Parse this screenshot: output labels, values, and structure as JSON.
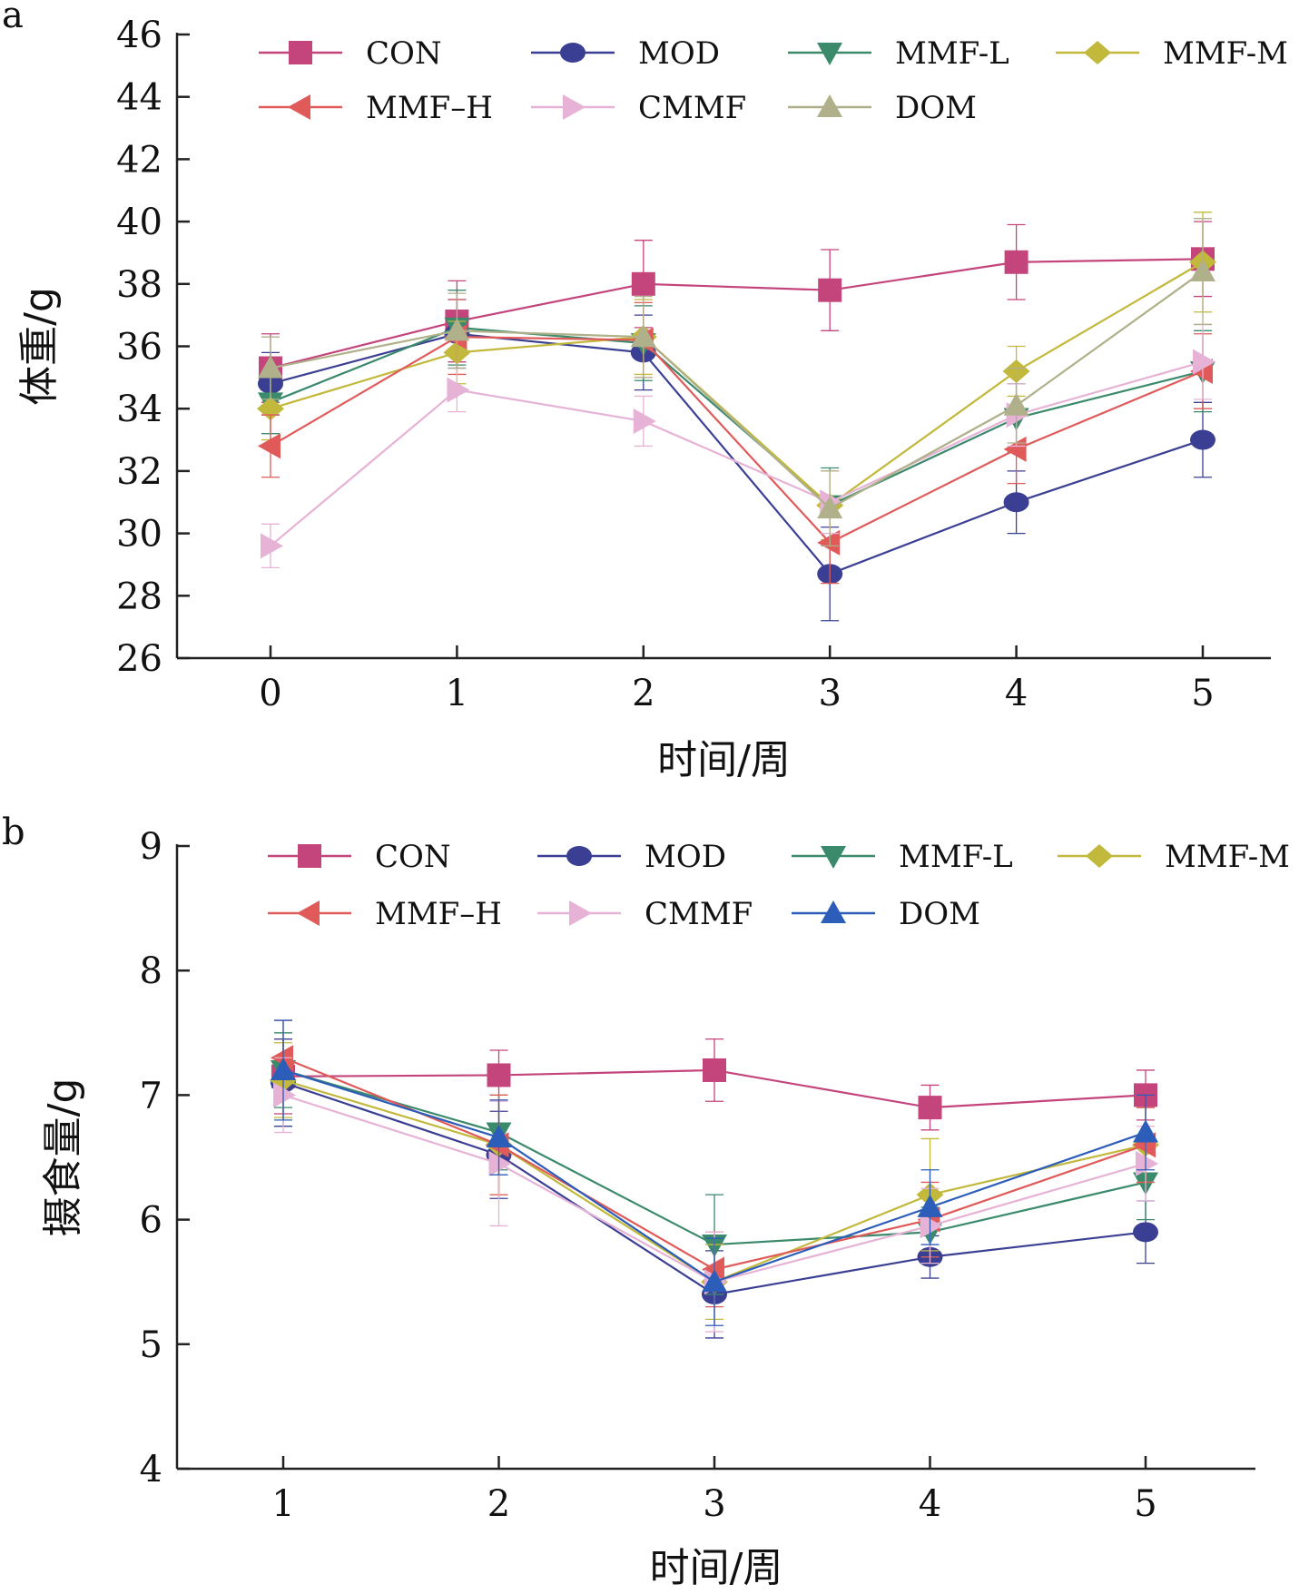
{
  "chart_data": [
    {
      "panel_label": "a",
      "type": "line",
      "xlabel": "时间/周",
      "ylabel": "体重/g",
      "x": [
        0,
        1,
        2,
        3,
        4,
        5
      ],
      "ylim": [
        26,
        46
      ],
      "yticks": [
        "26",
        "28",
        "30",
        "32",
        "34",
        "36",
        "38",
        "40",
        "42",
        "44",
        "46"
      ],
      "xticks": [
        "0",
        "1",
        "2",
        "3",
        "4",
        "5"
      ],
      "series": [
        {
          "name": "CON",
          "color": "#c4447c",
          "marker": "square",
          "values": [
            35.3,
            36.8,
            38.0,
            37.8,
            38.7,
            38.8
          ],
          "err": [
            1.1,
            1.3,
            1.4,
            1.3,
            1.2,
            1.2
          ]
        },
        {
          "name": "MOD",
          "color": "#3b3f93",
          "marker": "circle",
          "values": [
            34.8,
            36.4,
            35.8,
            28.7,
            31.0,
            33.0
          ],
          "err": [
            1.0,
            1.1,
            1.2,
            1.5,
            1.0,
            1.2
          ]
        },
        {
          "name": "MMF-L",
          "color": "#3a8a6b",
          "marker": "tri-down",
          "values": [
            34.2,
            36.6,
            36.1,
            30.9,
            33.7,
            35.2
          ],
          "err": [
            1.0,
            1.2,
            1.2,
            1.2,
            1.1,
            1.3
          ]
        },
        {
          "name": "MMF-M",
          "color": "#c2b83c",
          "marker": "diamond",
          "values": [
            34.0,
            35.8,
            36.3,
            30.9,
            35.2,
            38.7
          ],
          "err": [
            1.0,
            1.0,
            1.2,
            1.1,
            0.8,
            1.6
          ]
        },
        {
          "name": "MMF–H",
          "color": "#e05a5a",
          "marker": "tri-left",
          "values": [
            32.8,
            36.3,
            36.2,
            29.7,
            32.7,
            35.2
          ],
          "err": [
            1.0,
            1.2,
            1.2,
            1.3,
            1.1,
            1.2
          ]
        },
        {
          "name": "CMMF",
          "color": "#e6b3d6",
          "marker": "tri-right",
          "values": [
            29.6,
            34.6,
            33.6,
            31.0,
            33.8,
            35.5
          ],
          "err": [
            0.7,
            0.7,
            0.8,
            1.0,
            1.0,
            1.2
          ]
        },
        {
          "name": "DOM",
          "color": "#b0b08a",
          "marker": "tri-up",
          "values": [
            35.3,
            36.5,
            36.3,
            30.8,
            34.1,
            38.4
          ],
          "err": [
            1.0,
            1.2,
            1.3,
            1.2,
            1.2,
            1.7
          ]
        }
      ]
    },
    {
      "panel_label": "b",
      "type": "line",
      "xlabel": "时间/周",
      "ylabel": "摄食量/g",
      "x": [
        1,
        2,
        3,
        4,
        5
      ],
      "ylim": [
        4,
        9
      ],
      "yticks": [
        "4",
        "5",
        "6",
        "7",
        "8",
        "9"
      ],
      "xticks": [
        "1",
        "2",
        "3",
        "4",
        "5"
      ],
      "series": [
        {
          "name": "CON",
          "color": "#c4447c",
          "marker": "square",
          "values": [
            7.15,
            7.16,
            7.2,
            6.9,
            7.0
          ],
          "err": [
            0.3,
            0.2,
            0.25,
            0.18,
            0.2
          ]
        },
        {
          "name": "MOD",
          "color": "#3b3f93",
          "marker": "circle",
          "values": [
            7.1,
            6.52,
            5.4,
            5.7,
            5.9
          ],
          "err": [
            0.35,
            0.35,
            0.35,
            0.17,
            0.25
          ]
        },
        {
          "name": "MMF-L",
          "color": "#3a8a6b",
          "marker": "tri-down",
          "values": [
            7.2,
            6.7,
            5.8,
            5.9,
            6.3
          ],
          "err": [
            0.3,
            0.3,
            0.4,
            0.2,
            0.3
          ]
        },
        {
          "name": "MMF-M",
          "color": "#c2b83c",
          "marker": "diamond",
          "values": [
            7.12,
            6.6,
            5.5,
            6.2,
            6.6
          ],
          "err": [
            0.3,
            0.4,
            0.3,
            0.45,
            0.3
          ]
        },
        {
          "name": "MMF–H",
          "color": "#e05a5a",
          "marker": "tri-left",
          "values": [
            7.3,
            6.6,
            5.6,
            6.0,
            6.6
          ],
          "err": [
            0.3,
            0.4,
            0.3,
            0.3,
            0.3
          ]
        },
        {
          "name": "CMMF",
          "color": "#e6b3d6",
          "marker": "tri-right",
          "values": [
            7.0,
            6.45,
            5.5,
            5.95,
            6.45
          ],
          "err": [
            0.3,
            0.5,
            0.4,
            0.3,
            0.3
          ]
        },
        {
          "name": "DOM",
          "color": "#2c5db8",
          "marker": "tri-up",
          "values": [
            7.2,
            6.66,
            5.5,
            6.1,
            6.7
          ],
          "err": [
            0.4,
            0.3,
            0.35,
            0.3,
            0.3
          ]
        }
      ]
    }
  ]
}
